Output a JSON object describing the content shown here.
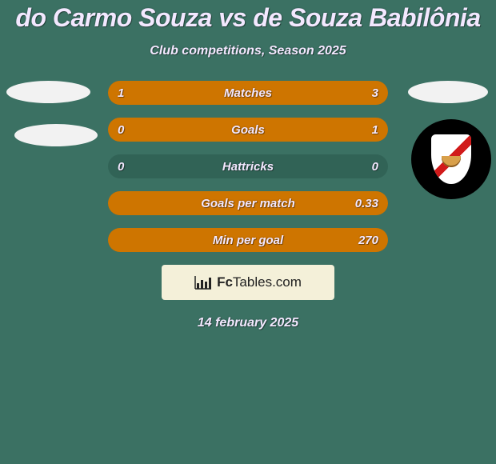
{
  "colors": {
    "page_bg": "#3b7163",
    "text": "#f3e8ff",
    "text_shadow": "rgba(0,0,0,0.35)",
    "row_accent": "#ce7500",
    "row_plain": "#316356",
    "site_box_bg": "#f4f0d9",
    "site_text": "#222222"
  },
  "title": "do Carmo Souza vs de Souza Babilônia",
  "subtitle": "Club competitions, Season 2025",
  "rows": [
    {
      "label": "Matches",
      "left": "1",
      "right": "3",
      "left_pct": 25,
      "right_pct": 75
    },
    {
      "label": "Goals",
      "left": "0",
      "right": "1",
      "left_pct": 0,
      "right_pct": 100
    },
    {
      "label": "Hattricks",
      "left": "0",
      "right": "0",
      "left_pct": 0,
      "right_pct": 0
    },
    {
      "label": "Goals per match",
      "left": "",
      "right": "0.33",
      "left_pct": 0,
      "right_pct": 100
    },
    {
      "label": "Min per goal",
      "left": "",
      "right": "270",
      "left_pct": 0,
      "right_pct": 100
    }
  ],
  "site": {
    "brand_bold": "Fc",
    "brand_rest": "Tables.com"
  },
  "date": "14 february 2025"
}
